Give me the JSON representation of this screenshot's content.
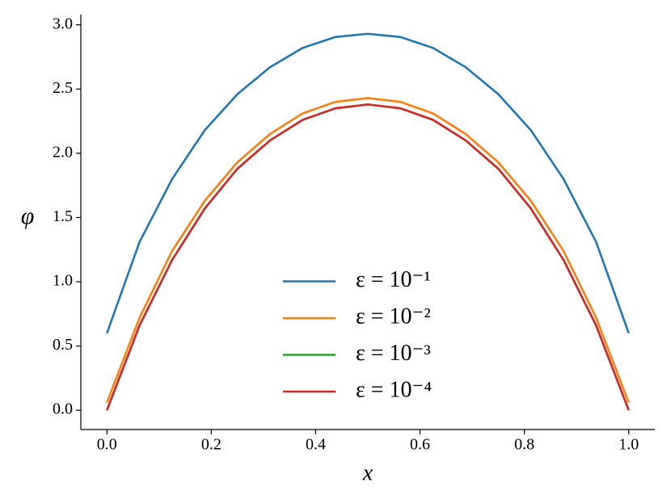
{
  "chart_data": {
    "type": "line",
    "xlabel": "x",
    "ylabel": "φ",
    "x": [
      0,
      0.0625,
      0.125,
      0.1875,
      0.25,
      0.3125,
      0.375,
      0.4375,
      0.5,
      0.5625,
      0.625,
      0.6875,
      0.75,
      0.8125,
      0.875,
      0.9375,
      1
    ],
    "series": [
      {
        "name": "ε = 10⁻¹",
        "color": "#1f77b4",
        "values": [
          0.6,
          1.31,
          1.8,
          2.18,
          2.46,
          2.67,
          2.82,
          2.905,
          2.93,
          2.905,
          2.82,
          2.67,
          2.46,
          2.18,
          1.8,
          1.31,
          0.6
        ]
      },
      {
        "name": "ε = 10⁻²",
        "color": "#ff7f0e",
        "values": [
          0.06,
          0.72,
          1.24,
          1.63,
          1.93,
          2.15,
          2.31,
          2.4,
          2.43,
          2.4,
          2.31,
          2.15,
          1.93,
          1.63,
          1.24,
          0.72,
          0.06
        ]
      },
      {
        "name": "ε = 10⁻³",
        "color": "#2ca02c",
        "values": [
          0,
          0.66,
          1.17,
          1.57,
          1.88,
          2.1,
          2.26,
          2.35,
          2.38,
          2.35,
          2.26,
          2.1,
          1.88,
          1.57,
          1.17,
          0.66,
          0
        ]
      },
      {
        "name": "ε = 10⁻⁴",
        "color": "#d62728",
        "values": [
          0,
          0.66,
          1.17,
          1.57,
          1.88,
          2.1,
          2.26,
          2.35,
          2.38,
          2.35,
          2.26,
          2.1,
          1.88,
          1.57,
          1.17,
          0.66,
          0
        ]
      }
    ],
    "xlim": [
      -0.05,
      1.05
    ],
    "ylim": [
      -0.15,
      3.08
    ],
    "xticks": [
      {
        "value": 0,
        "label": "0.0"
      },
      {
        "value": 0.2,
        "label": "0.2"
      },
      {
        "value": 0.4,
        "label": "0.4"
      },
      {
        "value": 0.6,
        "label": "0.6"
      },
      {
        "value": 0.8,
        "label": "0.8"
      },
      {
        "value": 1,
        "label": "1.0"
      }
    ],
    "yticks": [
      {
        "value": 0,
        "label": "0.0"
      },
      {
        "value": 0.5,
        "label": "0.5"
      },
      {
        "value": 1,
        "label": "1.0"
      },
      {
        "value": 1.5,
        "label": "1.5"
      },
      {
        "value": 2,
        "label": "2.0"
      },
      {
        "value": 2.5,
        "label": "2.5"
      },
      {
        "value": 3,
        "label": "3.0"
      }
    ],
    "grid": false,
    "legend": "lower center"
  }
}
